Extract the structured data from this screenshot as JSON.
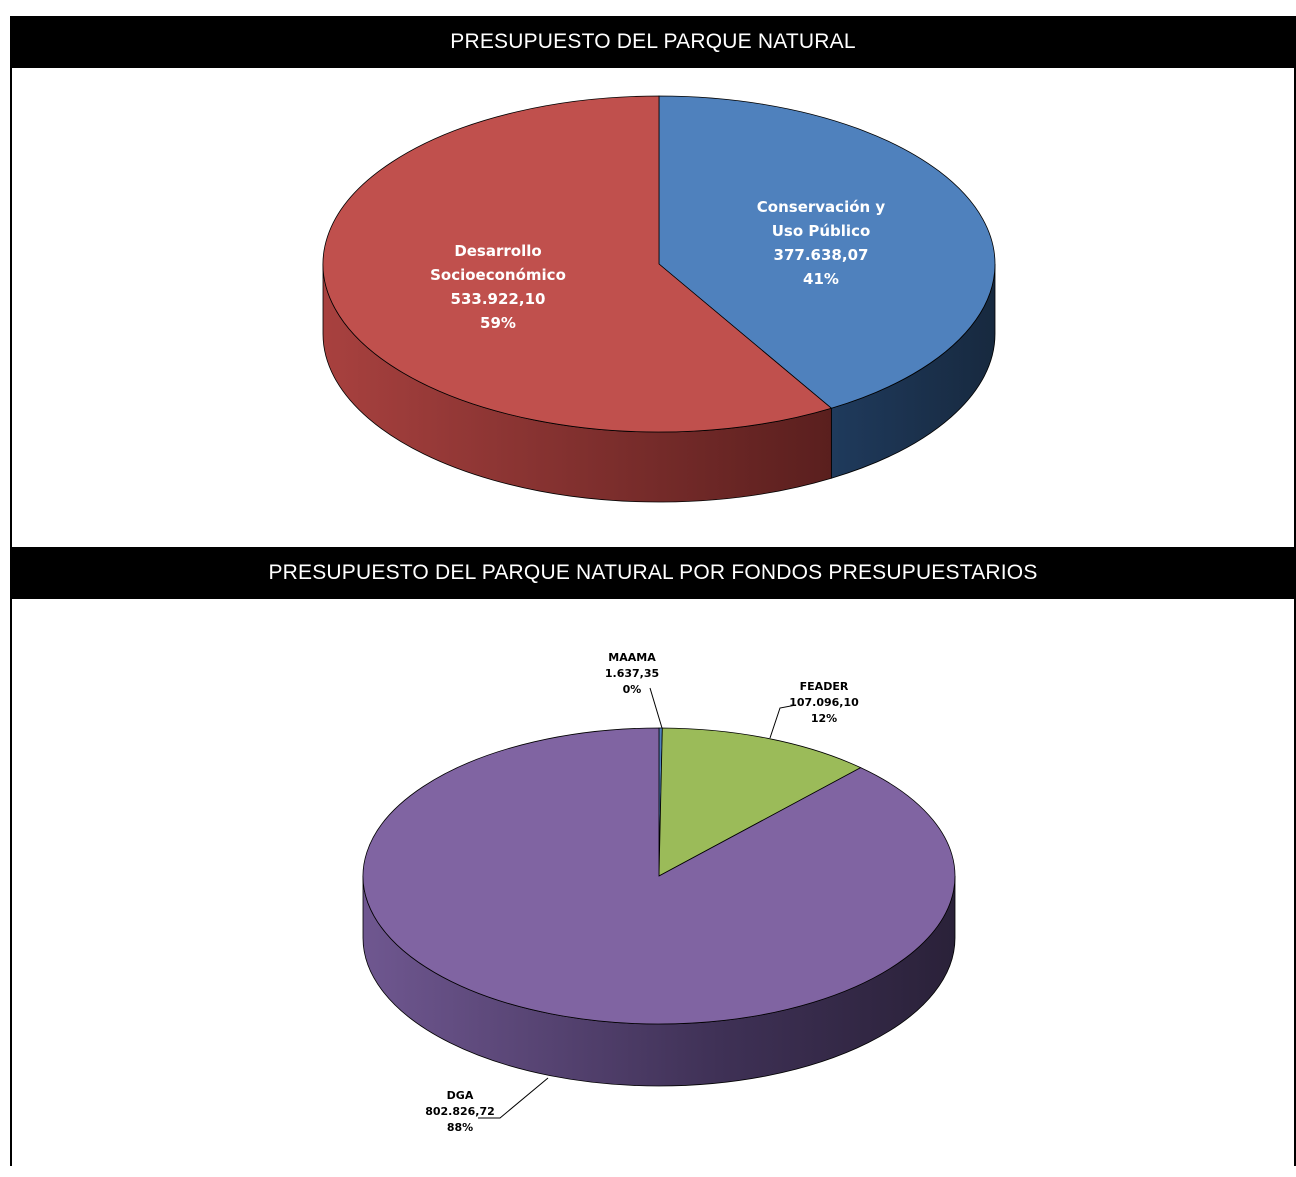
{
  "chart_data": [
    {
      "type": "pie",
      "title": "PRESUPUESTO DEL PARQUE NATURAL",
      "slices": [
        {
          "label": "Conservación y Uso Público",
          "label_lines": [
            "Conservación y",
            "Uso Público"
          ],
          "value": 377638.07,
          "value_text": "377.638,07",
          "percent_text": "41%",
          "color": "#4f81bd"
        },
        {
          "label": "Desarrollo Socioeconómico",
          "label_lines": [
            "Desarrollo",
            "Socioeconómico"
          ],
          "value": 533922.1,
          "value_text": "533.922,10",
          "percent_text": "59%",
          "color": "#c0504d"
        }
      ]
    },
    {
      "type": "pie",
      "title": "PRESUPUESTO DEL PARQUE NATURAL POR FONDOS PRESUPUESTARIOS",
      "slices": [
        {
          "label": "MAAMA",
          "label_lines": [
            "MAAMA"
          ],
          "value": 1637.35,
          "value_text": "1.637,35",
          "percent_text": "0%",
          "color": "#4f81bd"
        },
        {
          "label": "FEADER",
          "label_lines": [
            "FEADER"
          ],
          "value": 107096.1,
          "value_text": "107.096,10",
          "percent_text": "12%",
          "color": "#9bbb59"
        },
        {
          "label": "DGA",
          "label_lines": [
            "DGA"
          ],
          "value": 802826.72,
          "value_text": "802.826,72",
          "percent_text": "88%",
          "color": "#8064a2"
        }
      ]
    }
  ]
}
